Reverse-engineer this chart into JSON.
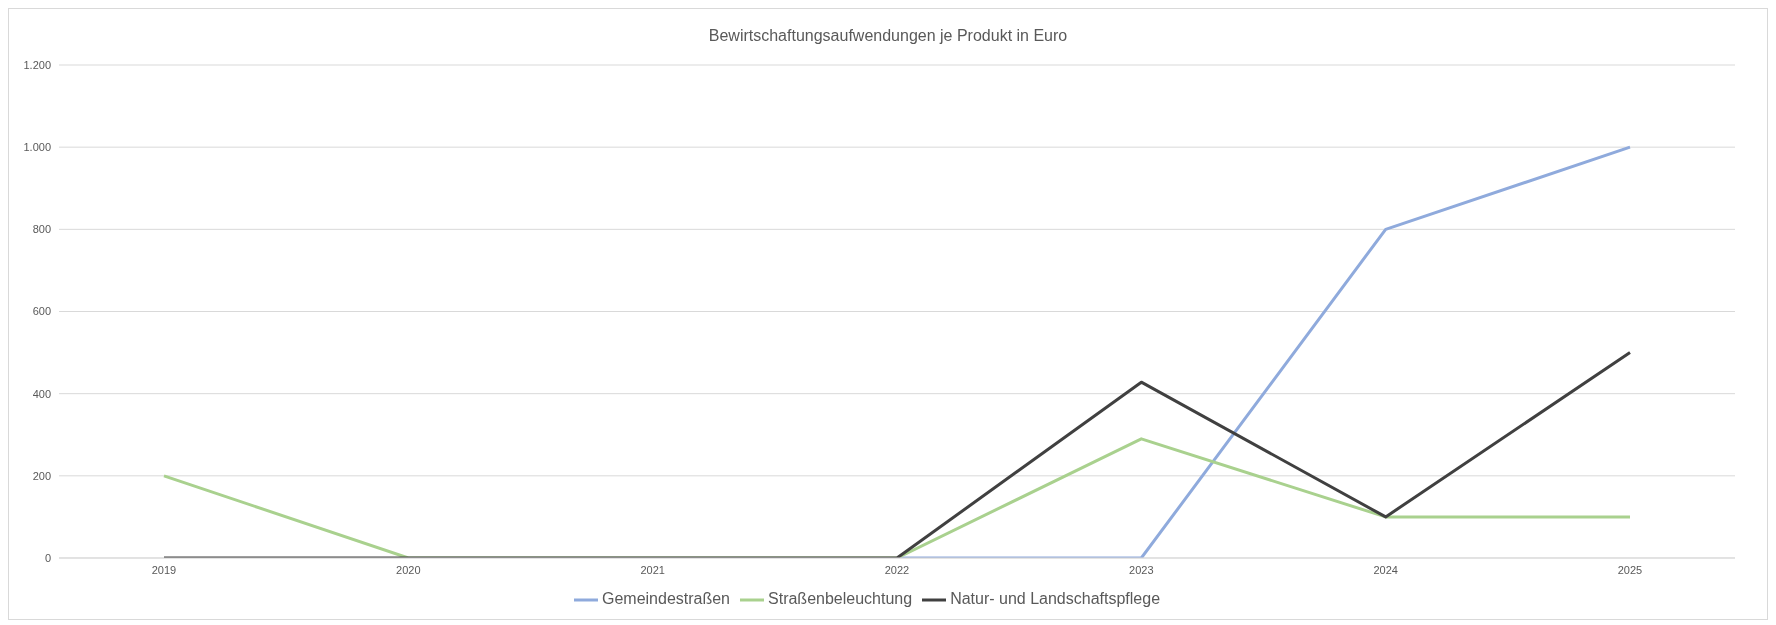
{
  "chart_data": {
    "type": "line",
    "title": "Bewirtschaftungsaufwendungen  je Produkt in Euro",
    "categories": [
      "2019",
      "2020",
      "2021",
      "2022",
      "2023",
      "2024",
      "2025"
    ],
    "series": [
      {
        "name": "Gemeindestraßen",
        "color": "#8faadc",
        "values": [
          null,
          null,
          null,
          0,
          0,
          800,
          1000
        ]
      },
      {
        "name": "Straßenbeleuchtung",
        "color": "#a9d18e",
        "values": [
          200,
          0,
          0,
          0,
          290,
          100,
          100
        ]
      },
      {
        "name": "Natur- und Landschaftspflege",
        "color": "#404040",
        "values": [
          0,
          0,
          0,
          0,
          428,
          100,
          500
        ]
      }
    ],
    "ylim": [
      0,
      1200
    ],
    "yticks": [
      0,
      200,
      400,
      600,
      800,
      {
        "value": 1000,
        "label": "1.000"
      },
      {
        "value": 1200,
        "label": "1.200"
      }
    ],
    "grid": "y",
    "legend": "bottom",
    "marker": "none",
    "line_style": "solid"
  }
}
